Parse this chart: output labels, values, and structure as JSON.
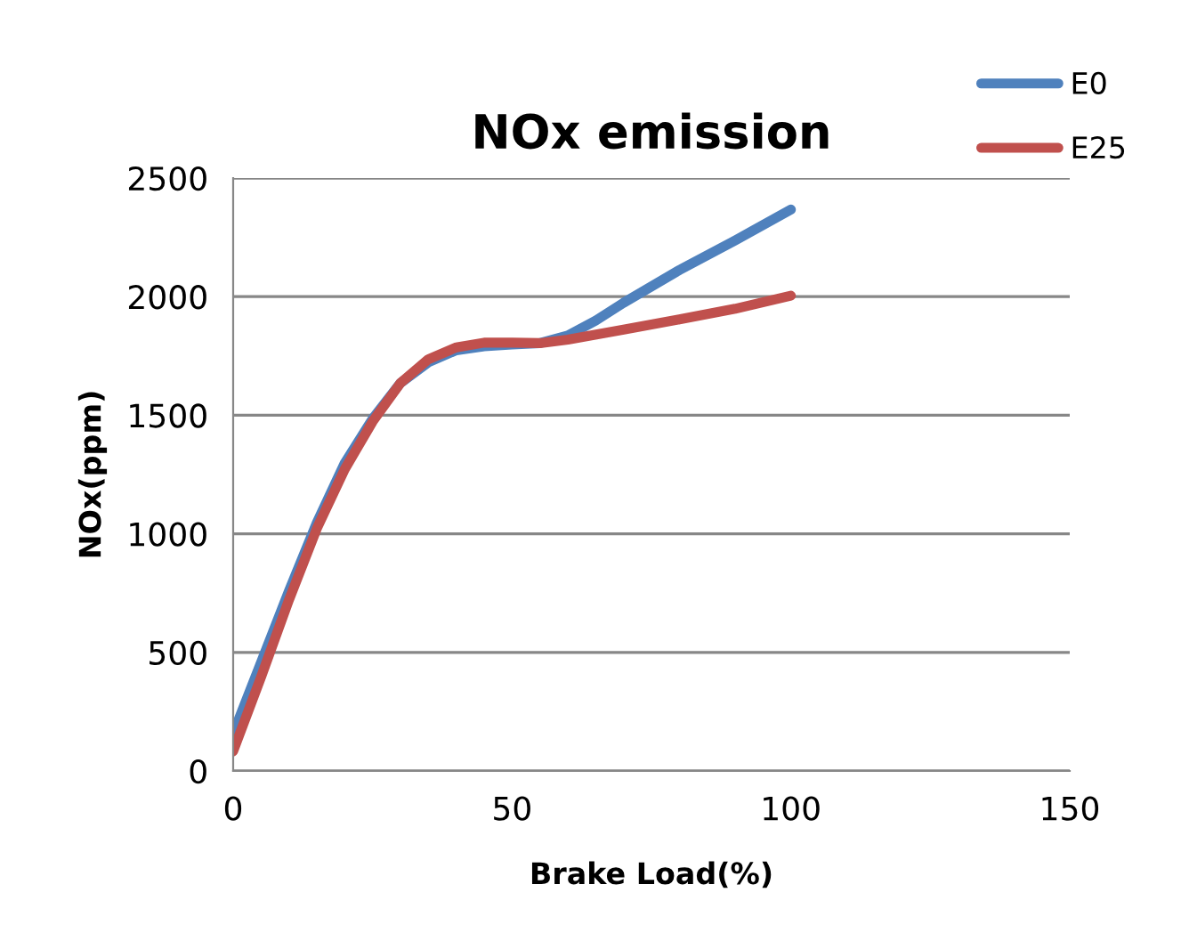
{
  "chart_data": {
    "type": "line",
    "title": "NOx emission",
    "xlabel": "Brake Load(%)",
    "ylabel": "NOx(ppm)",
    "xlim": [
      0,
      150
    ],
    "xticks": [
      0,
      50,
      100,
      150
    ],
    "ylim": [
      0,
      2500
    ],
    "yticks": [
      0,
      500,
      1000,
      1500,
      2000,
      2500
    ],
    "grid": "y",
    "legend": "top right",
    "marker": "none",
    "line_style": "solid",
    "series": [
      {
        "name": "E0",
        "color": "#4f81bd",
        "x": [
          0,
          5,
          10,
          15,
          20,
          25,
          30,
          35,
          40,
          45,
          50,
          55,
          60,
          65,
          70,
          80,
          90,
          100
        ],
        "values": [
          158,
          458,
          759,
          1047,
          1298,
          1485,
          1636,
          1723,
          1774,
          1791,
          1798,
          1804,
          1836,
          1899,
          1974,
          2112,
          2237,
          2367
        ]
      },
      {
        "name": "E25",
        "color": "#c0504d",
        "x": [
          0,
          5,
          10,
          15,
          20,
          25,
          30,
          35,
          40,
          45,
          50,
          55,
          60,
          70,
          80,
          90,
          100
        ],
        "values": [
          83,
          396,
          721,
          1022,
          1272,
          1473,
          1636,
          1736,
          1786,
          1806,
          1806,
          1804,
          1819,
          1861,
          1904,
          1949,
          2004
        ]
      }
    ]
  }
}
